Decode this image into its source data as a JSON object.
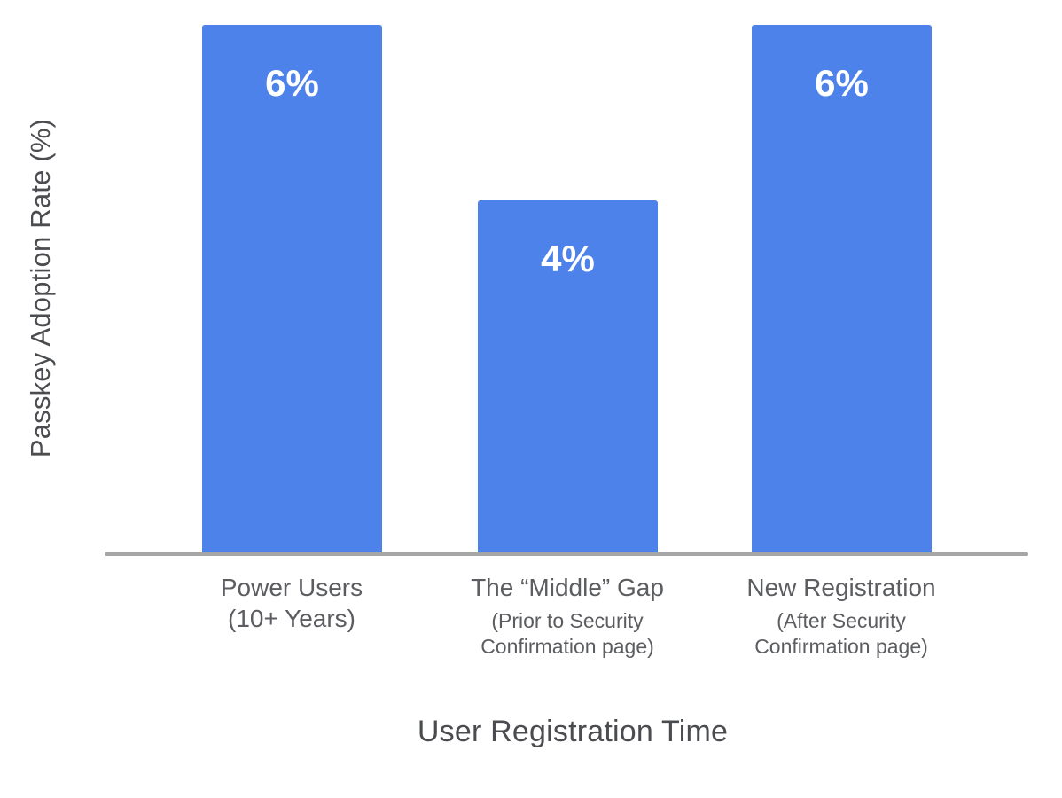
{
  "chart_data": {
    "type": "bar",
    "title": "",
    "xlabel": "User Registration Time",
    "ylabel": "Passkey Adoption Rate (%)",
    "ylim": [
      0,
      6
    ],
    "grid": false,
    "legend": false,
    "categories": [
      {
        "title": "Power Users\n(10+ Years)",
        "subtitle": ""
      },
      {
        "title": "The “Middle” Gap",
        "subtitle": "(Prior to Security\nConfirmation page)"
      },
      {
        "title": "New Registration",
        "subtitle": "(After Security\nConfirmation page)"
      }
    ],
    "values": [
      6,
      4,
      6
    ],
    "value_labels": [
      "6%",
      "4%",
      "6%"
    ],
    "colors": {
      "bar": "#4d82ea",
      "value_label": "#ffffff",
      "axis_line": "#a6a6a6",
      "tick_label": "#5c5d61",
      "axis_title": "#4b4c50"
    }
  }
}
